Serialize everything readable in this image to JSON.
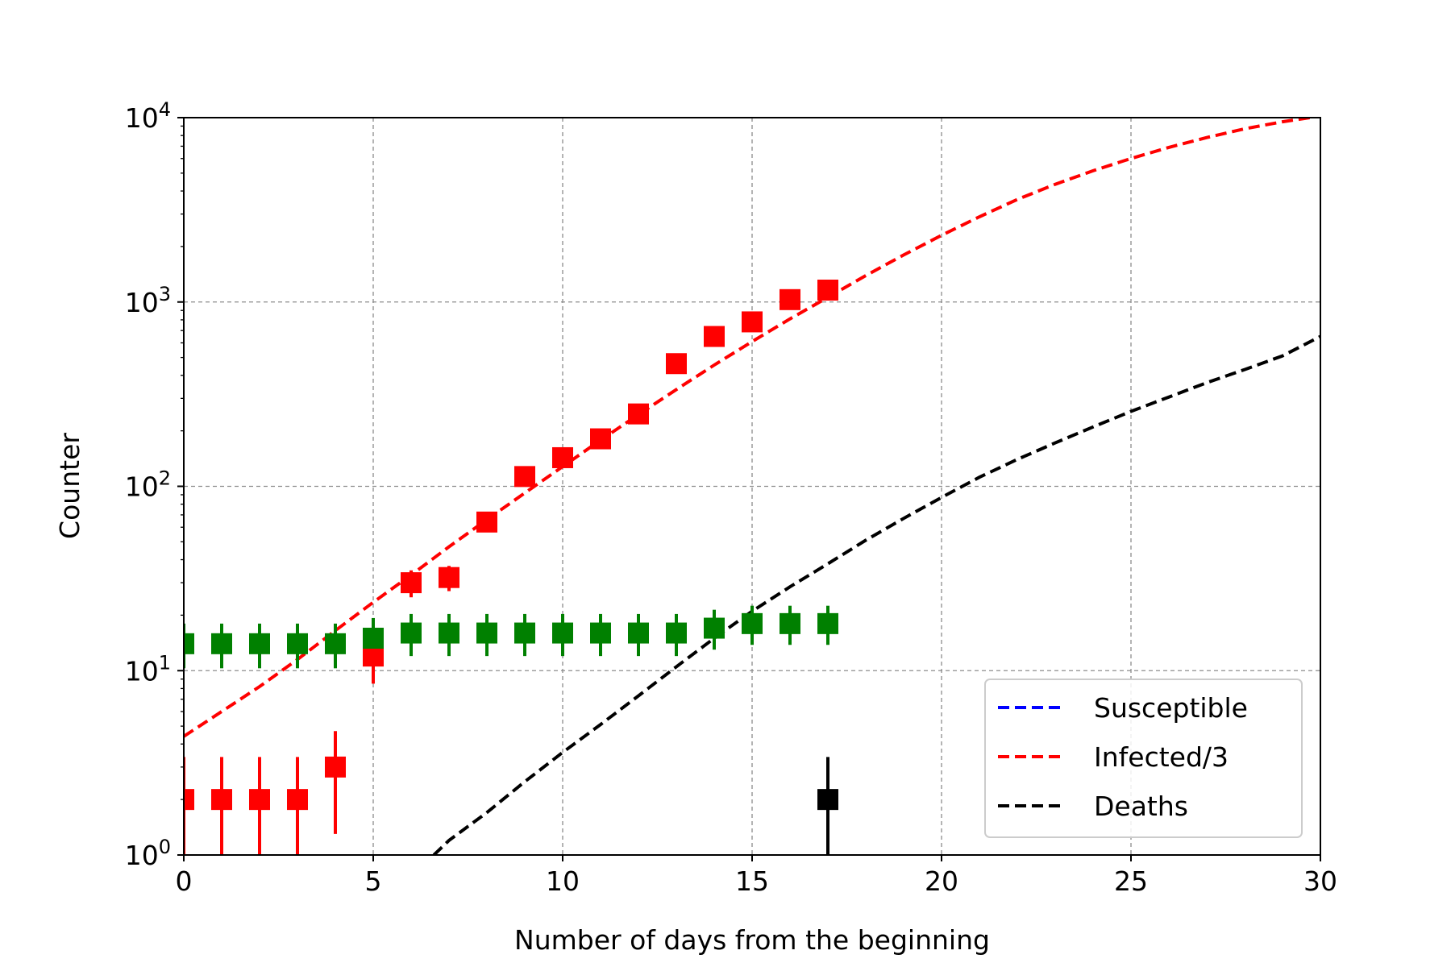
{
  "chart_data": {
    "type": "scatter",
    "xlabel": "Number of days from the beginning",
    "ylabel": "Counter",
    "xlim": [
      0,
      30
    ],
    "ylim": [
      1,
      10000
    ],
    "yscale": "log",
    "grid": true,
    "xticks": [
      0,
      5,
      10,
      15,
      20,
      25,
      30
    ],
    "xtick_labels": [
      "0",
      "5",
      "10",
      "15",
      "20",
      "25",
      "30"
    ],
    "yticks": [
      1,
      10,
      100,
      1000,
      10000
    ],
    "ytick_labels": [
      {
        "base": "10",
        "exp": "0"
      },
      {
        "base": "10",
        "exp": "1"
      },
      {
        "base": "10",
        "exp": "2"
      },
      {
        "base": "10",
        "exp": "3"
      },
      {
        "base": "10",
        "exp": "4"
      }
    ],
    "legend": {
      "location": "lower-right",
      "entries": [
        {
          "label": "Susceptible",
          "color": "#0000ff",
          "style": "dashed"
        },
        {
          "label": "Infected/3",
          "color": "#ff0000",
          "style": "dashed"
        },
        {
          "label": "Deaths",
          "color": "#000000",
          "style": "dashed"
        }
      ]
    },
    "curves": [
      {
        "color": "#ff0000",
        "x": [
          0,
          1,
          2,
          3,
          4,
          5,
          6,
          7,
          8,
          9,
          10,
          11,
          12,
          13,
          14,
          15,
          16,
          17,
          18,
          19,
          20,
          21,
          22,
          23,
          24,
          25,
          26,
          27,
          28,
          29,
          30
        ],
        "y": [
          4.4,
          6.0,
          8.2,
          11.5,
          16.5,
          23.5,
          33,
          47,
          66,
          92,
          128,
          178,
          245,
          335,
          455,
          610,
          810,
          1060,
          1390,
          1800,
          2300,
          2900,
          3600,
          4350,
          5150,
          6000,
          6900,
          7800,
          8700,
          9500,
          10200
        ]
      },
      {
        "color": "#000000",
        "x": [
          6.6,
          7,
          8,
          9,
          10,
          11,
          12,
          13,
          14,
          15,
          16,
          17,
          18,
          19,
          20,
          21,
          22,
          23,
          24,
          25,
          26,
          27,
          28,
          29,
          30
        ],
        "y": [
          1.0,
          1.2,
          1.7,
          2.5,
          3.6,
          5.1,
          7.3,
          10.5,
          15,
          21,
          28.5,
          38,
          51,
          67,
          87,
          112,
          140,
          172,
          210,
          255,
          305,
          365,
          430,
          510,
          650
        ]
      }
    ],
    "series": [
      {
        "color": "#ff0000",
        "x": [
          0,
          1,
          2,
          3,
          4,
          5,
          6,
          7,
          8,
          9,
          10,
          11,
          12,
          13,
          14,
          15,
          16,
          17
        ],
        "y": [
          2,
          2,
          2,
          2,
          3,
          12,
          30,
          32,
          64,
          113,
          143,
          181,
          247,
          463,
          650,
          780,
          1030,
          1160
        ],
        "yerr_low": [
          1,
          1,
          1,
          1,
          1.3,
          8.5,
          25,
          27,
          60,
          106,
          136,
          173,
          237,
          450,
          630,
          760,
          1000,
          1130
        ],
        "yerr_high": [
          3.4,
          3.4,
          3.4,
          3.4,
          4.7,
          15.5,
          35,
          37,
          72,
          122,
          154,
          194,
          263,
          480,
          675,
          810,
          1065,
          1200
        ]
      },
      {
        "color": "#008000",
        "x": [
          0,
          1,
          2,
          3,
          4,
          5,
          6,
          7,
          8,
          9,
          10,
          11,
          12,
          13,
          14,
          15,
          16,
          17
        ],
        "y": [
          14,
          14,
          14,
          14,
          14,
          15,
          16,
          16,
          16,
          16,
          16,
          16,
          16,
          16,
          17,
          18,
          18,
          18
        ],
        "yerr_low": [
          10.3,
          10.3,
          10.3,
          10.3,
          10.3,
          11.2,
          12,
          12,
          12,
          12,
          12,
          12,
          12,
          12,
          13,
          13.8,
          13.8,
          13.8
        ],
        "yerr_high": [
          18,
          18,
          18,
          18,
          18,
          19.3,
          20.3,
          20.3,
          20.3,
          20.3,
          20.3,
          20.3,
          20.3,
          20.3,
          21.4,
          22.5,
          22.5,
          22.5
        ]
      },
      {
        "color": "#000000",
        "x": [
          17
        ],
        "y": [
          2
        ],
        "yerr_low": [
          1
        ],
        "yerr_high": [
          3.4
        ]
      }
    ]
  }
}
